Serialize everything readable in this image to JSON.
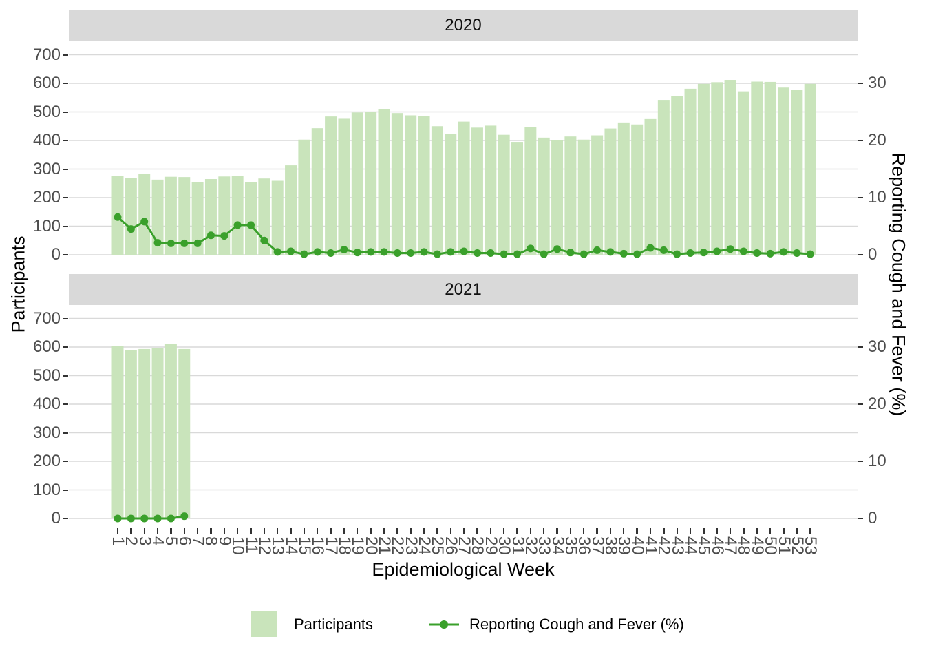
{
  "figure": {
    "facet_labels": [
      "2020",
      "2021"
    ],
    "left_axis_title": "Participants",
    "right_axis_title": "Reporting Cough and Fever (%)",
    "x_axis_title": "Epidemiological Week",
    "legend": {
      "bar_label": "Participants",
      "line_label": "Reporting Cough and Fever (%)"
    }
  },
  "colors": {
    "bar_fill": "#c9e4bb",
    "line": "#3aa02b",
    "gridline": "#d9d9d9",
    "strip_bg": "#d9d9d9",
    "axis_text": "#4d4d4d",
    "tick_mark": "#333333"
  },
  "axes": {
    "left_ticks": [
      0,
      100,
      200,
      300,
      400,
      500,
      600,
      700
    ],
    "right_ticks": [
      0,
      10,
      20,
      30
    ],
    "left_ylim": [
      0,
      700
    ],
    "right_ylim": [
      0,
      35
    ],
    "right_to_left_factor": 20,
    "x_tick_labels": [
      "1",
      "2",
      "3",
      "4",
      "5",
      "6",
      "7",
      "8",
      "9",
      "10",
      "11",
      "12",
      "13",
      "14",
      "15",
      "16",
      "17",
      "18",
      "19",
      "20",
      "21",
      "22",
      "23",
      "24",
      "25",
      "26",
      "27",
      "28",
      "29",
      "30",
      "31",
      "32",
      "33",
      "34",
      "35",
      "36",
      "37",
      "38",
      "39",
      "40",
      "41",
      "42",
      "43",
      "44",
      "45",
      "46",
      "47",
      "48",
      "49",
      "50",
      "51",
      "52",
      "53"
    ]
  },
  "chart_data": [
    {
      "type": "bar",
      "facet": "2020",
      "weeks": [
        1,
        2,
        3,
        4,
        5,
        6,
        7,
        8,
        9,
        10,
        11,
        12,
        13,
        14,
        15,
        16,
        17,
        18,
        19,
        20,
        21,
        22,
        23,
        24,
        25,
        26,
        27,
        28,
        29,
        30,
        31,
        32,
        33,
        34,
        35,
        36,
        37,
        38,
        39,
        40,
        41,
        42,
        43,
        44,
        45,
        46,
        47,
        48,
        49,
        50,
        51,
        52,
        53
      ],
      "series": [
        {
          "name": "Participants",
          "axis": "left",
          "values": [
            277,
            268,
            283,
            263,
            273,
            272,
            254,
            265,
            274,
            275,
            255,
            267,
            259,
            313,
            403,
            443,
            484,
            476,
            498,
            500,
            509,
            496,
            488,
            486,
            450,
            424,
            466,
            445,
            452,
            420,
            395,
            446,
            410,
            400,
            414,
            403,
            418,
            442,
            463,
            456,
            475,
            542,
            556,
            581,
            598,
            604,
            612,
            572,
            606,
            605,
            585,
            578,
            598
          ]
        },
        {
          "name": "Reporting Cough and Fever (%)",
          "axis": "right",
          "values": [
            6.6,
            4.5,
            5.8,
            2.1,
            2.0,
            2.0,
            2.0,
            3.4,
            3.3,
            5.2,
            5.2,
            2.5,
            0.5,
            0.6,
            0.1,
            0.5,
            0.3,
            0.9,
            0.4,
            0.5,
            0.5,
            0.3,
            0.3,
            0.5,
            0.1,
            0.5,
            0.6,
            0.3,
            0.3,
            0.1,
            0.1,
            1.1,
            0.1,
            1.0,
            0.4,
            0.1,
            0.8,
            0.5,
            0.2,
            0.1,
            1.2,
            0.8,
            0.1,
            0.3,
            0.4,
            0.6,
            1.0,
            0.6,
            0.3,
            0.2,
            0.5,
            0.3,
            0.1
          ]
        }
      ]
    },
    {
      "type": "bar",
      "facet": "2021",
      "weeks": [
        1,
        2,
        3,
        4,
        5,
        6
      ],
      "series": [
        {
          "name": "Participants",
          "axis": "left",
          "values": [
            603,
            589,
            593,
            597,
            610,
            593
          ]
        },
        {
          "name": "Reporting Cough and Fever (%)",
          "axis": "right",
          "values": [
            0,
            0,
            0,
            0,
            0,
            0.4
          ]
        }
      ]
    }
  ]
}
